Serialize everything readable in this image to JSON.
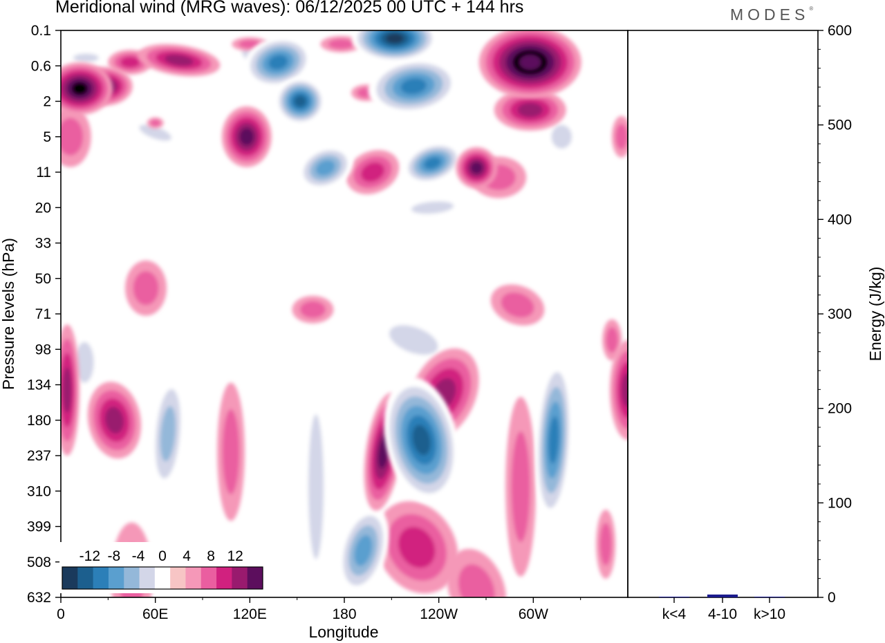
{
  "title": "Meridional wind (MRG waves):  06/12/2025  00 UTC  + 144 hrs",
  "brand": "MODES",
  "brand_mark": "®",
  "chart_data": [
    {
      "type": "heatmap",
      "title": "Meridional wind (MRG waves):  06/12/2025  00 UTC  + 144 hrs",
      "xlabel": "Longitude",
      "ylabel": "Pressure levels (hPa)",
      "x_tick_labels": [
        "0",
        "60E",
        "120E",
        "180",
        "120W",
        "60W"
      ],
      "x_ticks_deg": [
        0,
        60,
        120,
        180,
        240,
        300
      ],
      "xlim": [
        0,
        360
      ],
      "y_tick_labels": [
        "0.1",
        "0.6",
        "2",
        "5",
        "11",
        "20",
        "33",
        "50",
        "71",
        "98",
        "134",
        "180",
        "237",
        "310",
        "399",
        "508",
        "632"
      ],
      "colorbar": {
        "labels": [
          "-12",
          "-8",
          "-4",
          "0",
          "4",
          "8",
          "12"
        ],
        "levels": [
          -14,
          -12,
          -10,
          -8,
          -6,
          -4,
          -2,
          2,
          4,
          6,
          8,
          10,
          12,
          14
        ],
        "colors": [
          "#1a3a5c",
          "#1c5f8e",
          "#2c7fb8",
          "#5a9fcf",
          "#94b8d9",
          "#d3d6e8",
          "#ffffff",
          "#f7c5c5",
          "#f598b8",
          "#ea5ea0",
          "#d1217f",
          "#991a6e",
          "#5c0e5d"
        ]
      },
      "features": [
        {
          "lon": 12,
          "lev": 1.3,
          "value": 12
        },
        {
          "lon": 28,
          "lev": 1.2,
          "value": 10
        },
        {
          "lon": 44,
          "lev": 0.5,
          "value": 6
        },
        {
          "lon": 75,
          "lev": 0.45,
          "value": 8
        },
        {
          "lon": 128,
          "lev": 0.3,
          "value": -4
        },
        {
          "lon": 138,
          "lev": 0.5,
          "value": -10
        },
        {
          "lon": 152,
          "lev": 2.0,
          "value": -12
        },
        {
          "lon": 212,
          "lev": 0.15,
          "value": -14
        },
        {
          "lon": 224,
          "lev": 1.2,
          "value": -10
        },
        {
          "lon": 298,
          "lev": 0.5,
          "value": 14
        },
        {
          "lon": 298,
          "lev": 2.5,
          "value": 8
        },
        {
          "lon": 118,
          "lev": 5,
          "value": 10
        },
        {
          "lon": 168,
          "lev": 10,
          "value": -8
        },
        {
          "lon": 198,
          "lev": 11,
          "value": 6
        },
        {
          "lon": 236,
          "lev": 9,
          "value": -10
        },
        {
          "lon": 264,
          "lev": 10,
          "value": 10
        },
        {
          "lon": 318,
          "lev": 5,
          "value": -4
        },
        {
          "lon": 6,
          "lev": 5,
          "value": 4
        },
        {
          "lon": 4,
          "lev": 140,
          "value": 8
        },
        {
          "lon": 34,
          "lev": 180,
          "value": 8
        },
        {
          "lon": 68,
          "lev": 200,
          "value": -6
        },
        {
          "lon": 15,
          "lev": 110,
          "value": -4
        },
        {
          "lon": 229,
          "lev": 210,
          "value": -12
        },
        {
          "lon": 205,
          "lev": 230,
          "value": 10
        },
        {
          "lon": 243,
          "lev": 145,
          "value": 8
        },
        {
          "lon": 313,
          "lev": 210,
          "value": -10
        },
        {
          "lon": 360,
          "lev": 140,
          "value": 8
        },
        {
          "lon": 192,
          "lev": 470,
          "value": -8
        },
        {
          "lon": 226,
          "lev": 460,
          "value": 6
        }
      ]
    },
    {
      "type": "bar",
      "title": "",
      "ylabel": "Energy (J/kg)",
      "categories": [
        "k<4",
        "4-10",
        "k>10"
      ],
      "values": [
        0,
        3,
        0
      ],
      "ylim": [
        0,
        600
      ],
      "y_tick_labels": [
        "0",
        "100",
        "200",
        "300",
        "400",
        "500",
        "600"
      ],
      "bar_color": "#1a1a8c"
    }
  ]
}
